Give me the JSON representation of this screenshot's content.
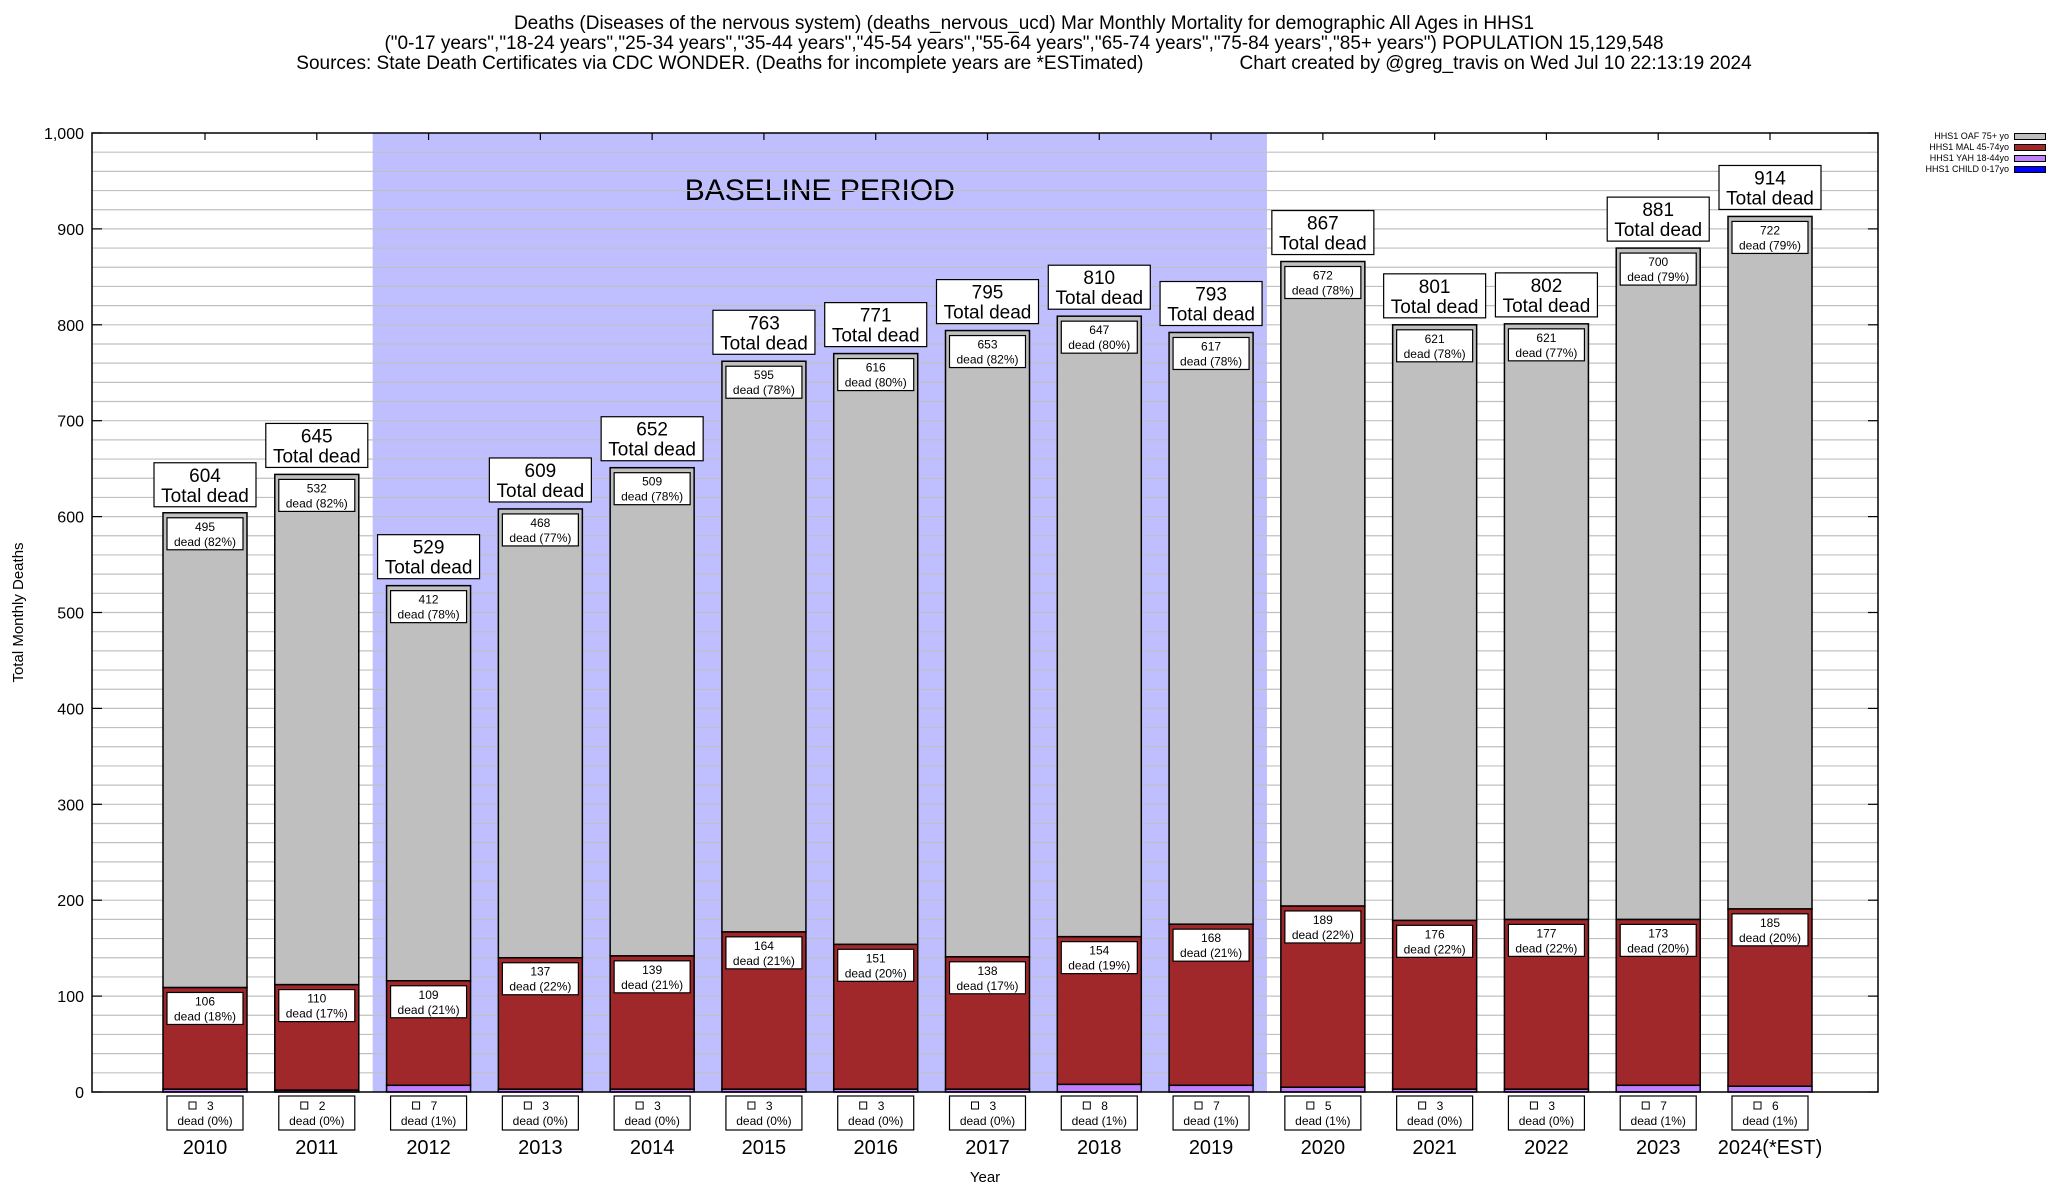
{
  "header": {
    "title_line1": "Deaths (Diseases of the nervous system) (deaths_nervous_ucd) Mar Monthly Mortality for demographic All Ages in HHS1",
    "title_line2": "(\"0-17 years\",\"18-24 years\",\"25-34 years\",\"35-44 years\",\"45-54 years\",\"55-64 years\",\"65-74 years\",\"75-84 years\",\"85+ years\") POPULATION 15,129,548",
    "sources": "Sources: State Death Certificates via CDC WONDER. (Deaths for incomplete years are *ESTimated)",
    "credit": "Chart created by @greg_travis on Wed Jul 10 22:13:19 2024"
  },
  "chart_data": {
    "type": "bar",
    "stacked": true,
    "title": "Deaths (Diseases of the nervous system) (deaths_nervous_ucd) Mar Monthly Mortality for demographic All Ages in HHS1",
    "xlabel": "Year",
    "ylabel": "Total Monthly Deaths",
    "ylim": [
      0,
      1000
    ],
    "yticks": [
      0,
      100,
      200,
      300,
      400,
      500,
      600,
      700,
      800,
      900,
      1000
    ],
    "ytick_labels": [
      "0",
      "100",
      "200",
      "300",
      "400",
      "500",
      "600",
      "700",
      "800",
      "900",
      "1,000"
    ],
    "minor_grid_step": 20,
    "grid": true,
    "legend_position": "top-right, outside plot",
    "categories": [
      "2010",
      "2011",
      "2012",
      "2013",
      "2014",
      "2015",
      "2016",
      "2017",
      "2018",
      "2019",
      "2020",
      "2021",
      "2022",
      "2023",
      "2024(*EST)"
    ],
    "series": [
      {
        "name": "HHS1 CHILD 0-17yo",
        "color": "#0000ff",
        "values": [
          0,
          0,
          0,
          0,
          0,
          0,
          0,
          0,
          0,
          0,
          0,
          0,
          0,
          0,
          0
        ]
      },
      {
        "name": "HHS1 YAH 18-44yo",
        "color": "#bf7fff",
        "values": [
          3,
          2,
          7,
          3,
          3,
          3,
          3,
          3,
          8,
          7,
          5,
          3,
          3,
          7,
          6
        ],
        "pct": [
          "0%",
          "0%",
          "1%",
          "0%",
          "0%",
          "0%",
          "0%",
          "0%",
          "1%",
          "1%",
          "1%",
          "0%",
          "0%",
          "1%",
          "1%"
        ]
      },
      {
        "name": "HHS1 MAL 45-74yo",
        "color": "#a0282a",
        "values": [
          106,
          110,
          109,
          137,
          139,
          164,
          151,
          138,
          154,
          168,
          189,
          176,
          177,
          173,
          185
        ],
        "pct": [
          "18%",
          "17%",
          "21%",
          "22%",
          "21%",
          "21%",
          "20%",
          "17%",
          "19%",
          "21%",
          "22%",
          "22%",
          "22%",
          "20%",
          "20%"
        ]
      },
      {
        "name": "HHS1 OAF 75+ yo",
        "color": "#bfbfbf",
        "values": [
          495,
          532,
          412,
          468,
          509,
          595,
          616,
          653,
          647,
          617,
          672,
          621,
          621,
          700,
          722
        ],
        "pct": [
          "82%",
          "82%",
          "78%",
          "77%",
          "78%",
          "78%",
          "80%",
          "82%",
          "80%",
          "78%",
          "78%",
          "78%",
          "77%",
          "79%",
          "79%"
        ]
      }
    ],
    "totals": [
      604,
      645,
      529,
      609,
      652,
      763,
      771,
      795,
      810,
      793,
      867,
      801,
      802,
      881,
      914
    ],
    "total_label_suffix": "Total dead",
    "segment_label_word": "dead",
    "annotations": [
      {
        "text": "BASELINE PERIOD",
        "from": "2012",
        "to": "2019",
        "color": "#bfbfff"
      }
    ],
    "legend": [
      "HHS1 OAF 75+ yo",
      "HHS1 MAL 45-74yo",
      "HHS1 YAH 18-44yo",
      "HHS1 CHILD 0-17yo"
    ]
  }
}
